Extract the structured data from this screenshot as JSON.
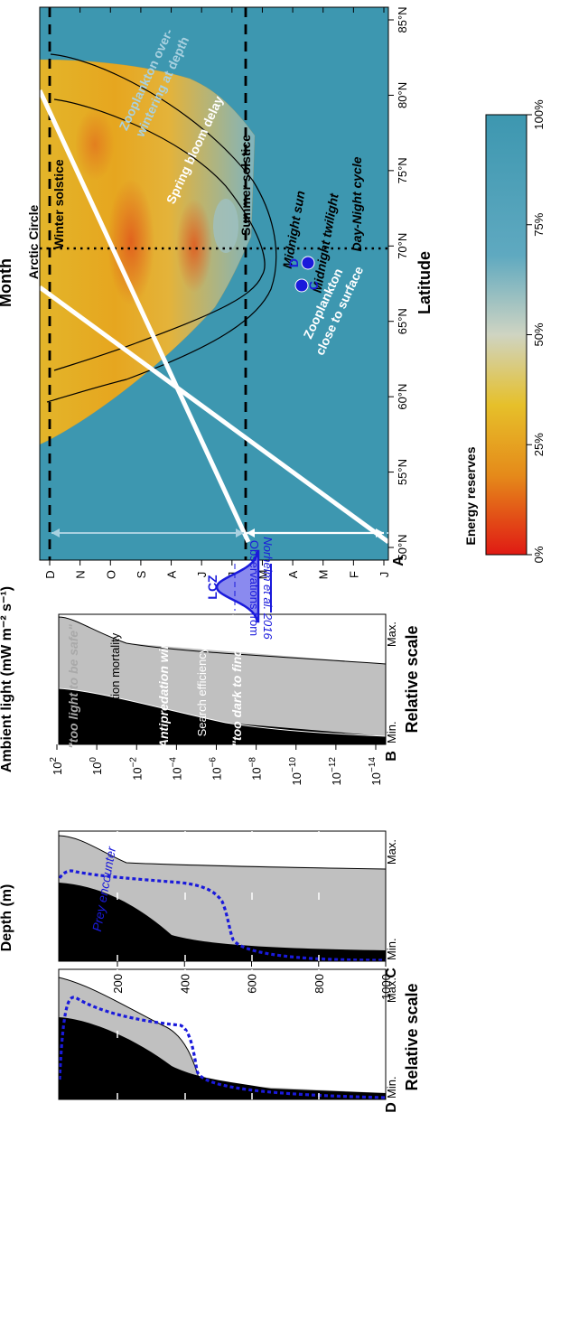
{
  "panel_a": {
    "letter": "A",
    "y_axis_label": "Month",
    "x_axis_label": "Latitude",
    "months": [
      "D",
      "N",
      "O",
      "S",
      "A",
      "J",
      "J",
      "M",
      "A",
      "M",
      "F",
      "J"
    ],
    "latitudes": [
      "50°N",
      "55°N",
      "60°N",
      "65°N",
      "70°N",
      "75°N",
      "80°N",
      "85°N"
    ],
    "labels": {
      "arctic_circle": "Arctic Circle",
      "winter_solstice": "Winter solstice",
      "summer_solstice": "Summer solstice",
      "spring_bloom_delay": "Spring bloom delay",
      "zooplankton_depth_1": "Zooplankton over-",
      "zooplankton_depth_2": "wintering at depth",
      "zooplankton_surface_1": "Zooplankton",
      "zooplankton_surface_2": "close to surface",
      "midnight_sun": "Midnight sun",
      "midnight_twilight": "Midnight twilight",
      "day_night_cycle": "Day-Night cycle",
      "point_c": "C",
      "point_d": "D"
    },
    "colors": {
      "background": "#3d97b0",
      "high_reserves": "#3d97b0",
      "mid_reserves": "#e3b52a",
      "low_reserves": "#e0561c",
      "points": "#1a1adb"
    }
  },
  "colorbar": {
    "title": "Energy reserves",
    "ticks": [
      "0%",
      "25%",
      "50%",
      "75%",
      "100%"
    ]
  },
  "panel_b": {
    "letter": "B",
    "y_axis_label": "Ambient light (mW m⁻² s⁻¹)",
    "x_axis_label": "Relative scale",
    "x_min": "Min.",
    "x_max": "Max.",
    "light_ticks": [
      {
        "base": "10",
        "exp": "2"
      },
      {
        "base": "10",
        "exp": "0"
      },
      {
        "base": "10",
        "exp": "−2"
      },
      {
        "base": "10",
        "exp": "−4"
      },
      {
        "base": "10",
        "exp": "−6"
      },
      {
        "base": "10",
        "exp": "−8"
      },
      {
        "base": "10",
        "exp": "−10"
      },
      {
        "base": "10",
        "exp": "−12"
      },
      {
        "base": "10",
        "exp": "−14"
      }
    ],
    "labels": {
      "too_light": "\"too light to be safe\"",
      "predation": "Predation mortality",
      "antipredation": "Antipredation window",
      "search": "Search efficiency",
      "too_dark": "\"too dark to find food\"",
      "lcz": "LCZ",
      "obs_1": "Observations from",
      "obs_2": "Norheim et al. 2016"
    },
    "colors": {
      "window": "#c0c0c0",
      "dark": "#000000",
      "obs": "#1a1adb",
      "obs_fill": "#8a8aef"
    }
  },
  "panel_c": {
    "letter": "C",
    "x_min": "Min.",
    "x_max": "Max.",
    "label_prey": "Prey encounter"
  },
  "panel_d": {
    "letter": "D",
    "x_min": "Min.",
    "x_max": "Max."
  },
  "panel_cd": {
    "y_axis_label": "Depth (m)",
    "x_axis_label": "Relative scale",
    "depth_ticks": [
      "200",
      "400",
      "600",
      "800",
      "1000"
    ]
  }
}
